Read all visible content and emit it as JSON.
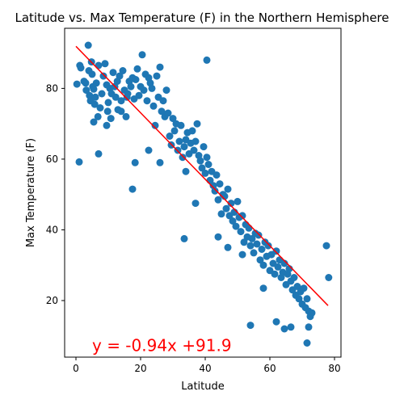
{
  "chart_data": {
    "type": "scatter",
    "title": "Latitude vs. Max Temperature (F) in the Northern Hemisphere",
    "xlabel": "Latitude",
    "ylabel": "Max Temperature (F)",
    "xlim": [
      -3.5,
      82
    ],
    "ylim": [
      4,
      97
    ],
    "xticks": [
      0,
      20,
      40,
      60,
      80
    ],
    "yticks": [
      20,
      40,
      60,
      80
    ],
    "grid": false,
    "point_color": "#1f77b4",
    "regression": {
      "slope": -0.94,
      "intercept": 91.9,
      "x_range": [
        0,
        78
      ],
      "color": "#ff0000",
      "equation_label": "y = -0.94x +91.9",
      "label_x": 5,
      "label_y": 4.8
    },
    "x": [
      0.3,
      1.2,
      1.5,
      2.5,
      3.0,
      3.2,
      3.8,
      4.0,
      4.2,
      4.5,
      4.8,
      5.0,
      5.2,
      5.5,
      5.8,
      6.0,
      6.3,
      6.8,
      7.0,
      7.5,
      8.0,
      8.5,
      9.0,
      9.5,
      9.8,
      10.0,
      10.5,
      10.8,
      11.0,
      11.5,
      12.0,
      12.3,
      12.8,
      13.0,
      13.5,
      14.0,
      14.5,
      15.0,
      15.5,
      15.8,
      16.0,
      16.5,
      17.0,
      17.5,
      18.0,
      18.5,
      19.0,
      19.5,
      20.0,
      20.5,
      21.0,
      21.5,
      22.0,
      22.5,
      23.0,
      23.5,
      24.0,
      24.5,
      25.0,
      25.5,
      26.0,
      26.5,
      27.0,
      27.5,
      28.0,
      28.5,
      29.0,
      29.5,
      30.0,
      30.5,
      31.0,
      31.5,
      32.0,
      32.5,
      33.0,
      33.5,
      34.0,
      34.5,
      35.0,
      35.5,
      36.0,
      36.5,
      37.0,
      37.5,
      38.0,
      38.5,
      39.0,
      39.5,
      40.0,
      40.5,
      41.0,
      41.5,
      42.0,
      42.5,
      43.0,
      43.5,
      44.0,
      44.5,
      45.0,
      45.5,
      46.0,
      46.5,
      47.0,
      47.5,
      48.0,
      48.5,
      49.0,
      49.5,
      50.0,
      50.5,
      51.0,
      51.5,
      52.0,
      52.5,
      53.0,
      53.5,
      54.0,
      54.5,
      55.0,
      55.5,
      56.0,
      56.5,
      57.0,
      57.5,
      58.0,
      58.5,
      59.0,
      59.5,
      60.0,
      60.5,
      61.0,
      61.5,
      62.0,
      62.5,
      63.0,
      63.5,
      64.0,
      64.5,
      65.0,
      65.5,
      66.0,
      66.5,
      67.0,
      67.5,
      68.0,
      68.5,
      69.0,
      69.5,
      70.0,
      70.5,
      71.0,
      71.5,
      72.0,
      72.5,
      73.0,
      77.5,
      78.2,
      40.5,
      18.3,
      17.5,
      33.5,
      34.0,
      7.0,
      1.0,
      5.5,
      9.5,
      14.0,
      22.5,
      26.0,
      37.0,
      44.0,
      47.0,
      51.5,
      54.0,
      58.0,
      62.0,
      64.5,
      66.5,
      71.5,
      72.0
    ],
    "y": [
      81.2,
      86.5,
      85.8,
      82.0,
      81.5,
      79.5,
      92.2,
      85.0,
      78.0,
      76.5,
      87.5,
      84.0,
      80.5,
      79.8,
      75.5,
      77.5,
      81.5,
      72.0,
      86.5,
      74.5,
      78.5,
      83.5,
      87.0,
      81.0,
      73.5,
      76.0,
      80.0,
      71.5,
      78.5,
      84.5,
      80.5,
      77.5,
      82.0,
      74.0,
      83.5,
      76.5,
      85.0,
      79.5,
      72.0,
      77.5,
      78.5,
      82.0,
      80.5,
      83.0,
      77.0,
      82.5,
      85.5,
      78.0,
      80.5,
      89.5,
      79.5,
      84.0,
      76.5,
      83.0,
      81.5,
      80.0,
      75.0,
      69.5,
      83.5,
      77.5,
      86.0,
      73.5,
      76.5,
      72.0,
      79.5,
      73.0,
      66.5,
      64.0,
      71.5,
      68.0,
      70.0,
      62.5,
      65.0,
      69.5,
      60.5,
      63.5,
      65.5,
      67.5,
      61.5,
      64.5,
      68.0,
      62.5,
      65.0,
      70.0,
      61.0,
      59.5,
      57.5,
      63.5,
      56.0,
      60.5,
      58.5,
      54.0,
      56.5,
      52.5,
      51.0,
      55.5,
      48.5,
      53.0,
      44.5,
      50.0,
      49.5,
      46.0,
      51.5,
      44.0,
      47.5,
      42.5,
      45.0,
      41.0,
      48.0,
      43.5,
      39.5,
      44.0,
      36.5,
      41.5,
      38.0,
      40.5,
      35.5,
      37.5,
      33.5,
      39.0,
      36.0,
      38.5,
      31.5,
      34.5,
      30.0,
      36.5,
      32.5,
      35.5,
      28.5,
      33.0,
      30.5,
      27.5,
      34.0,
      29.5,
      31.5,
      26.5,
      28.0,
      30.5,
      24.5,
      27.5,
      29.0,
      25.5,
      23.0,
      26.5,
      21.5,
      24.0,
      20.5,
      22.5,
      19.0,
      23.5,
      18.0,
      20.5,
      17.0,
      15.5,
      16.5,
      35.5,
      26.5,
      88.0,
      59.0,
      51.5,
      37.5,
      56.5,
      61.5,
      59.2,
      70.5,
      69.5,
      73.5,
      62.5,
      59.0,
      47.5,
      38.0,
      35.0,
      33.0,
      13.0,
      23.5,
      14.0,
      12.0,
      12.5,
      8.0,
      12.5
    ]
  }
}
